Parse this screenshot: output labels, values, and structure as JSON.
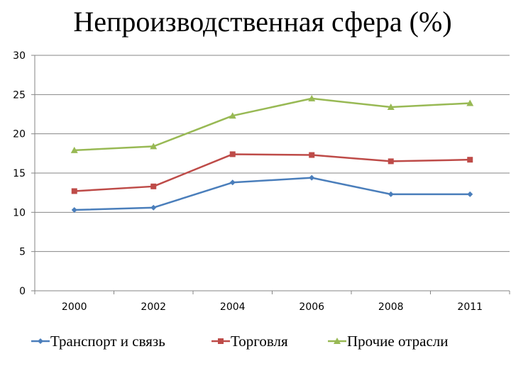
{
  "chart_data": {
    "type": "line",
    "title": "Непроизводственная сфера (%)",
    "categories": [
      "2000",
      "2002",
      "2004",
      "2006",
      "2008",
      "2011"
    ],
    "series": [
      {
        "name": "Транспорт и связь",
        "color": "#4a7ebb",
        "marker": "diamond",
        "values": [
          10.3,
          10.6,
          13.8,
          14.4,
          12.3,
          12.3
        ]
      },
      {
        "name": "Торговля",
        "color": "#be4b48",
        "marker": "square",
        "values": [
          12.7,
          13.3,
          17.4,
          17.3,
          16.5,
          16.7
        ]
      },
      {
        "name": "Прочие отрасли",
        "color": "#98b954",
        "marker": "triangle",
        "values": [
          17.9,
          18.4,
          22.3,
          24.5,
          23.4,
          23.9
        ]
      }
    ],
    "yticks": [
      "0",
      "5",
      "10",
      "15",
      "20",
      "25",
      "30"
    ],
    "ylim": [
      0,
      30
    ],
    "grid": "horizontal",
    "legend_position": "bottom"
  }
}
